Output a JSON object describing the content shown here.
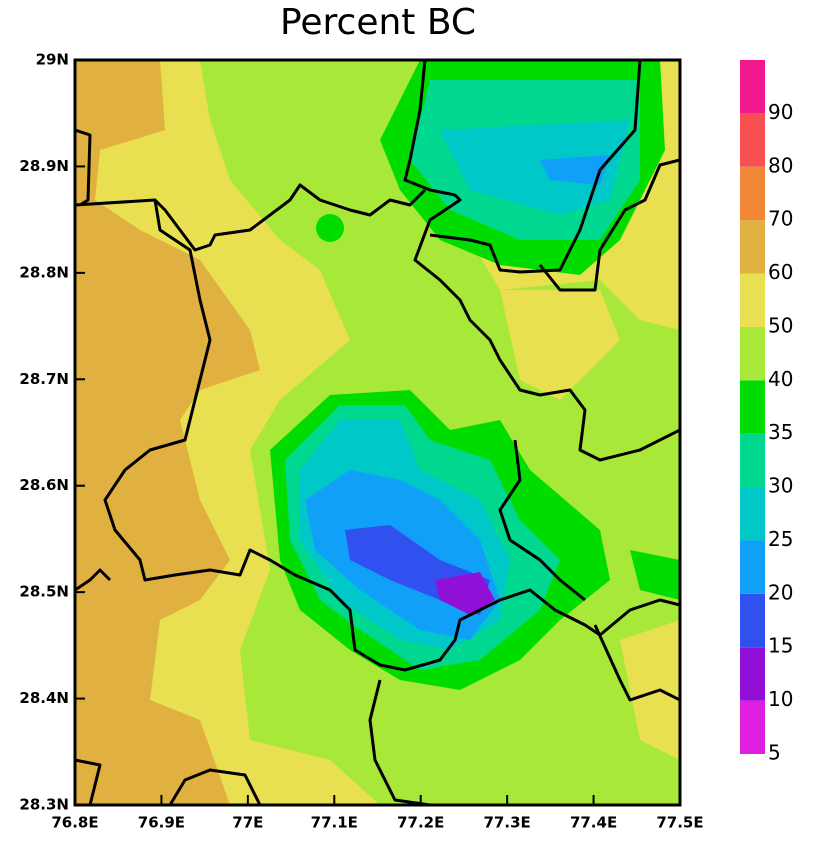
{
  "chart_data": {
    "type": "contour-map",
    "title": "Percent BC",
    "xlim": [
      76.8,
      77.5
    ],
    "ylim": [
      28.3,
      29
    ],
    "xticks": [
      {
        "value": 76.8,
        "label": "76.8E"
      },
      {
        "value": 76.9,
        "label": "76.9E"
      },
      {
        "value": 77,
        "label": "77E"
      },
      {
        "value": 77.1,
        "label": "77.1E"
      },
      {
        "value": 77.2,
        "label": "77.2E"
      },
      {
        "value": 77.3,
        "label": "77.3E"
      },
      {
        "value": 77.4,
        "label": "77.4E"
      },
      {
        "value": 77.5,
        "label": "77.5E"
      }
    ],
    "yticks": [
      {
        "value": 28.3,
        "label": "28.3N"
      },
      {
        "value": 28.4,
        "label": "28.4N"
      },
      {
        "value": 28.5,
        "label": "28.5N"
      },
      {
        "value": 28.6,
        "label": "28.6N"
      },
      {
        "value": 28.7,
        "label": "28.7N"
      },
      {
        "value": 28.8,
        "label": "28.8N"
      },
      {
        "value": 28.9,
        "label": "28.9N"
      },
      {
        "value": 29,
        "label": "29N"
      }
    ],
    "colorbar": {
      "levels": [
        5,
        10,
        15,
        20,
        25,
        30,
        35,
        40,
        50,
        60,
        70,
        80,
        90
      ],
      "colors": [
        "#e020e0",
        "#9010d8",
        "#3050f0",
        "#10a0f8",
        "#00c8c8",
        "#00d890",
        "#00dc00",
        "#a8e838",
        "#e8e050",
        "#e0b040",
        "#f08838",
        "#f85050",
        "#f0188c"
      ]
    }
  }
}
